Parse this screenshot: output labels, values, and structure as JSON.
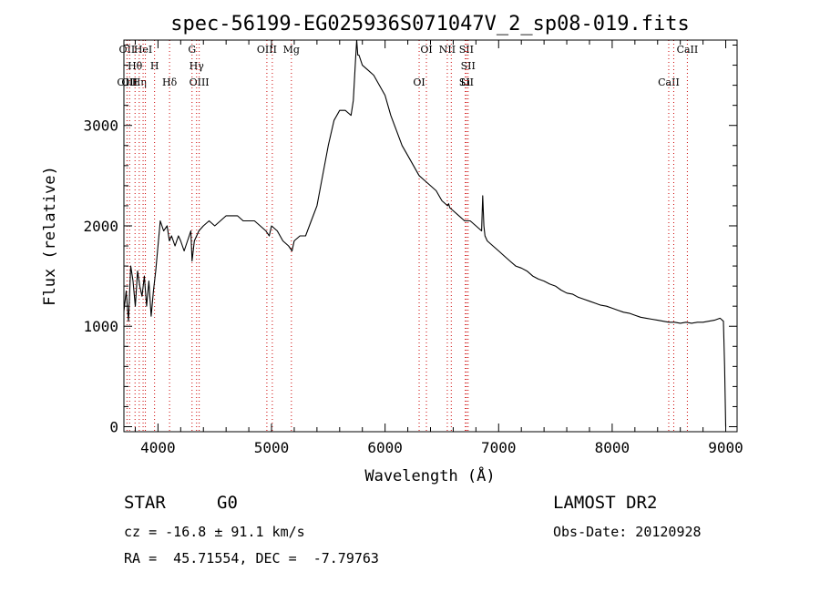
{
  "chart_data": {
    "type": "line",
    "title": "spec-56199-EG025936S071047V_2_sp08-019.fits",
    "xlabel": "Wavelength (Å)",
    "ylabel": "Flux (relative)",
    "xlim": [
      3700,
      9100
    ],
    "ylim": [
      -50,
      3850
    ],
    "x_ticks": [
      4000,
      5000,
      6000,
      7000,
      8000,
      9000
    ],
    "y_ticks": [
      0,
      1000,
      2000,
      3000
    ],
    "grid": false,
    "series": [
      {
        "x": [
          3700,
          3720,
          3740,
          3760,
          3780,
          3800,
          3820,
          3840,
          3860,
          3880,
          3900,
          3920,
          3940,
          3960,
          3980,
          4000,
          4020,
          4050,
          4080,
          4100,
          4120,
          4150,
          4180,
          4200,
          4230,
          4260,
          4290,
          4300,
          4320,
          4340,
          4360,
          4400,
          4450,
          4500,
          4550,
          4600,
          4650,
          4700,
          4750,
          4800,
          4850,
          4900,
          4950,
          4980,
          5000,
          5050,
          5100,
          5150,
          5180,
          5200,
          5250,
          5300,
          5350,
          5400,
          5450,
          5500,
          5550,
          5600,
          5650,
          5700,
          5720,
          5740,
          5750,
          5760,
          5770,
          5800,
          5850,
          5900,
          5950,
          6000,
          6050,
          6100,
          6150,
          6200,
          6250,
          6300,
          6350,
          6400,
          6450,
          6500,
          6550,
          6560,
          6570,
          6600,
          6650,
          6700,
          6750,
          6800,
          6850,
          6860,
          6870,
          6880,
          6900,
          6950,
          7000,
          7050,
          7100,
          7150,
          7200,
          7250,
          7300,
          7350,
          7400,
          7450,
          7500,
          7550,
          7600,
          7650,
          7700,
          7750,
          7800,
          7850,
          7900,
          7950,
          8000,
          8050,
          8100,
          8150,
          8200,
          8250,
          8300,
          8350,
          8400,
          8450,
          8500,
          8550,
          8600,
          8650,
          8700,
          8750,
          8800,
          8850,
          8900,
          8950,
          8980,
          8990,
          9000
        ],
        "y": [
          1150,
          1350,
          1050,
          1600,
          1450,
          1200,
          1550,
          1400,
          1300,
          1500,
          1200,
          1450,
          1100,
          1350,
          1550,
          1800,
          2050,
          1950,
          2000,
          1850,
          1900,
          1800,
          1900,
          1850,
          1750,
          1850,
          1950,
          1650,
          1850,
          1900,
          1950,
          2000,
          2050,
          2000,
          2050,
          2100,
          2100,
          2100,
          2050,
          2050,
          2050,
          2000,
          1950,
          1900,
          2000,
          1950,
          1850,
          1800,
          1750,
          1850,
          1900,
          1900,
          2050,
          2200,
          2500,
          2800,
          3050,
          3150,
          3150,
          3100,
          3250,
          3650,
          3850,
          3700,
          3700,
          3600,
          3550,
          3500,
          3400,
          3300,
          3100,
          2950,
          2800,
          2700,
          2600,
          2500,
          2450,
          2400,
          2350,
          2250,
          2200,
          2220,
          2180,
          2150,
          2100,
          2050,
          2050,
          2000,
          1950,
          2300,
          2000,
          1900,
          1850,
          1800,
          1750,
          1700,
          1650,
          1600,
          1580,
          1550,
          1500,
          1470,
          1450,
          1420,
          1400,
          1360,
          1330,
          1320,
          1290,
          1270,
          1250,
          1230,
          1210,
          1200,
          1180,
          1160,
          1140,
          1130,
          1110,
          1090,
          1080,
          1070,
          1060,
          1050,
          1040,
          1040,
          1030,
          1040,
          1030,
          1040,
          1040,
          1050,
          1060,
          1080,
          1050,
          600,
          0
        ]
      }
    ],
    "line_markers": {
      "color": "#cc0000",
      "lines": [
        {
          "wavelength": 3727,
          "top": "OII",
          "bottom": "OIII"
        },
        {
          "wavelength": 3750,
          "bottom": "OII"
        },
        {
          "wavelength": 3798,
          "top": "Hθ"
        },
        {
          "wavelength": 3835,
          "bottom": "Hη"
        },
        {
          "wavelength": 3869,
          "top": "HeI"
        },
        {
          "wavelength": 3889,
          "top": ""
        },
        {
          "wavelength": 3970,
          "top": "H"
        },
        {
          "wavelength": 4102,
          "bottom": "Hδ"
        },
        {
          "wavelength": 4300,
          "top": "G"
        },
        {
          "wavelength": 4340,
          "top": "Hγ"
        },
        {
          "wavelength": 4363,
          "bottom": "OIII"
        },
        {
          "wavelength": 4959,
          "top": "OIII"
        },
        {
          "wavelength": 5007,
          "top": ""
        },
        {
          "wavelength": 5175,
          "top": "Mg"
        },
        {
          "wavelength": 6300,
          "bottom": "OI"
        },
        {
          "wavelength": 6364,
          "top": "OI"
        },
        {
          "wavelength": 6548,
          "top": "NII"
        },
        {
          "wavelength": 6583,
          "top": ""
        },
        {
          "wavelength": 6707,
          "bottom": "Li"
        },
        {
          "wavelength": 6716,
          "top": "SII",
          "bottom": "SII"
        },
        {
          "wavelength": 6731,
          "top": "SII"
        },
        {
          "wavelength": 8498,
          "bottom": "CaII"
        },
        {
          "wavelength": 8542,
          "top": ""
        },
        {
          "wavelength": 8662,
          "top": "CaII"
        }
      ]
    }
  },
  "info": {
    "class": "STAR",
    "subclass": "G0",
    "survey": "LAMOST DR2",
    "cz": "cz = -16.8 ± 91.1 km/s",
    "obs_date": "Obs-Date: 20120928",
    "coords": "RA =  45.71554, DEC =  -7.79763"
  }
}
